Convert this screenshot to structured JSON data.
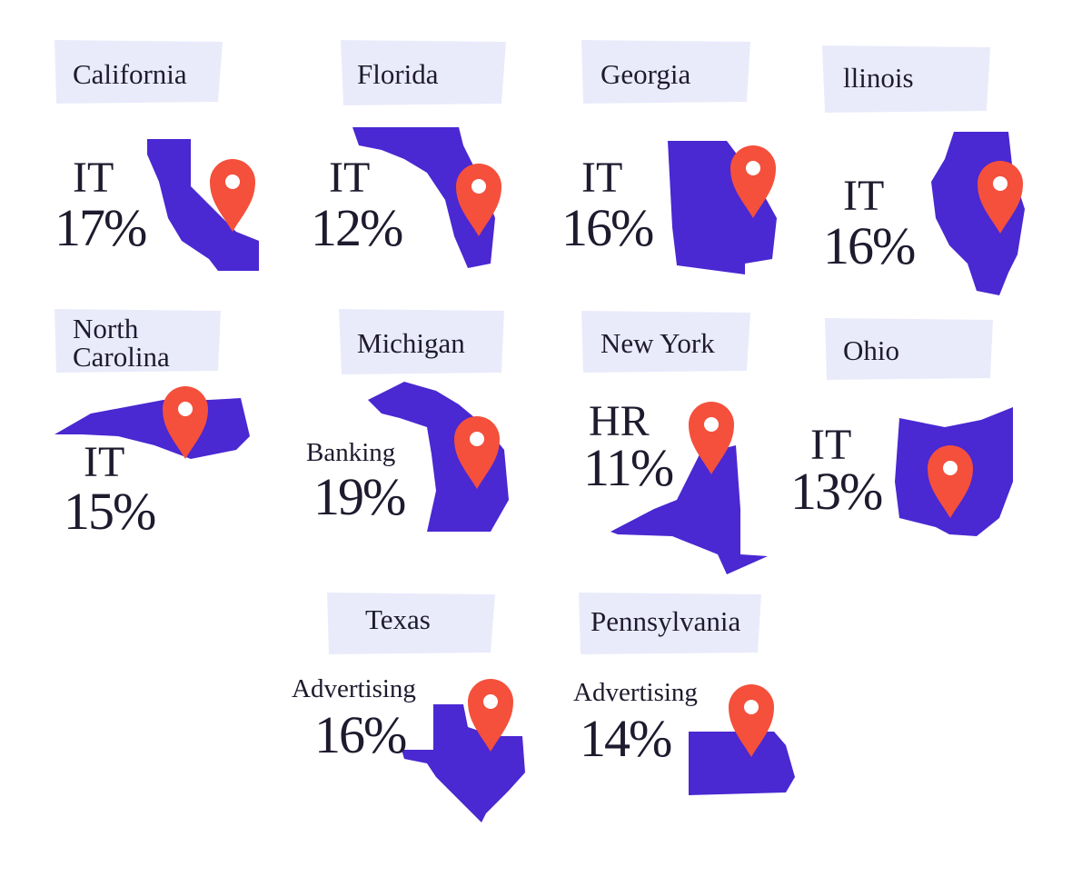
{
  "states": [
    {
      "name": "California",
      "industry": "IT",
      "share": "17%"
    },
    {
      "name": "Florida",
      "industry": "IT",
      "share": "12%"
    },
    {
      "name": "Georgia",
      "industry": "IT",
      "share": "16%"
    },
    {
      "name": "llinois",
      "industry": "IT",
      "share": "16%"
    },
    {
      "name": "North Carolina",
      "industry": "IT",
      "share": "15%"
    },
    {
      "name": "Michigan",
      "industry": "Banking",
      "share": "19%"
    },
    {
      "name": "New York",
      "industry": "HR",
      "share": "11%"
    },
    {
      "name": "Ohio",
      "industry": "IT",
      "share": "13%"
    },
    {
      "name": "Texas",
      "industry": "Advertising",
      "share": "16%"
    },
    {
      "name": "Pennsylvania",
      "industry": "Advertising",
      "share": "14%"
    }
  ]
}
